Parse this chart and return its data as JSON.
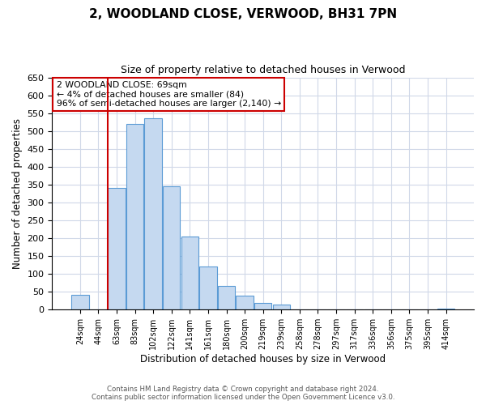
{
  "title": "2, WOODLAND CLOSE, VERWOOD, BH31 7PN",
  "subtitle": "Size of property relative to detached houses in Verwood",
  "xlabel": "Distribution of detached houses by size in Verwood",
  "ylabel": "Number of detached properties",
  "bin_labels": [
    "24sqm",
    "44sqm",
    "63sqm",
    "83sqm",
    "102sqm",
    "122sqm",
    "141sqm",
    "161sqm",
    "180sqm",
    "200sqm",
    "219sqm",
    "239sqm",
    "258sqm",
    "278sqm",
    "297sqm",
    "317sqm",
    "336sqm",
    "356sqm",
    "375sqm",
    "395sqm",
    "414sqm"
  ],
  "bar_heights": [
    42,
    0,
    340,
    520,
    535,
    345,
    205,
    120,
    67,
    39,
    20,
    14,
    0,
    0,
    0,
    0,
    0,
    0,
    0,
    0,
    3
  ],
  "bar_color": "#c5d9f0",
  "bar_edge_color": "#5b9bd5",
  "vline_color": "#cc0000",
  "annotation_line1": "2 WOODLAND CLOSE: 69sqm",
  "annotation_line2": "← 4% of detached houses are smaller (84)",
  "annotation_line3": "96% of semi-detached houses are larger (2,140) →",
  "annotation_box_color": "#ffffff",
  "annotation_box_edge": "#cc0000",
  "ylim": [
    0,
    650
  ],
  "yticks": [
    0,
    50,
    100,
    150,
    200,
    250,
    300,
    350,
    400,
    450,
    500,
    550,
    600,
    650
  ],
  "footer_line1": "Contains HM Land Registry data © Crown copyright and database right 2024.",
  "footer_line2": "Contains public sector information licensed under the Open Government Licence v3.0.",
  "bg_color": "#ffffff",
  "grid_color": "#d0d8e8"
}
